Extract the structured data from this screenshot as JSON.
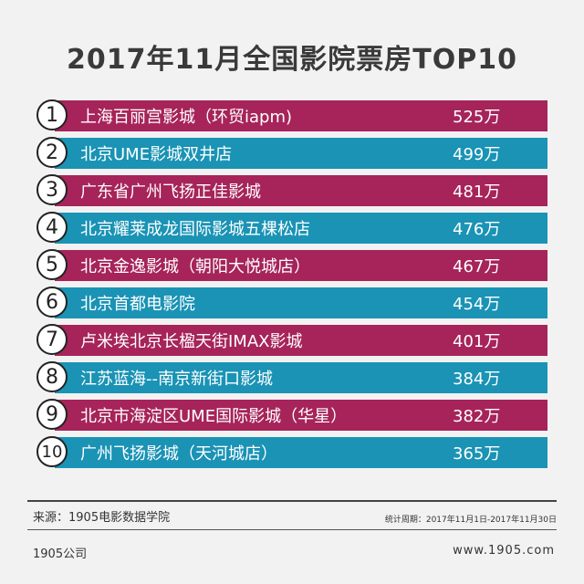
{
  "chart_data": {
    "type": "bar",
    "title": "2017年11月全国影院票房TOP10",
    "categories": [
      "上海百丽宫影城（环贸iapm)",
      "北京UME影城双井店",
      "广东省广州飞扬正佳影城",
      "北京耀莱成龙国际影城五棵松店",
      "北京金逸影城（朝阳大悦城店）",
      "北京首都电影院",
      "卢米埃北京长楹天街IMAX影城",
      "江苏蓝海--南京新街口影城",
      "北京市海淀区UME国际影城（华星）",
      "广州飞扬影城（天河城店）"
    ],
    "ranks": [
      "1",
      "2",
      "3",
      "4",
      "5",
      "6",
      "7",
      "8",
      "9",
      "10"
    ],
    "value_labels": [
      "525万",
      "499万",
      "481万",
      "476万",
      "467万",
      "454万",
      "401万",
      "384万",
      "382万",
      "365万"
    ],
    "values": [
      525,
      499,
      481,
      476,
      467,
      454,
      401,
      384,
      382,
      365
    ],
    "row_colors": [
      "#a6245a",
      "#1a93b5",
      "#a6245a",
      "#1a93b5",
      "#a6245a",
      "#1a93b5",
      "#a6245a",
      "#1a93b5",
      "#a6245a",
      "#1a93b5"
    ]
  },
  "footer": {
    "source": "来源：1905电影数据学院",
    "period": "统计周期：2017年11月1日-2017年11月30日",
    "company": "1905公司",
    "website": "www.1905.com"
  }
}
